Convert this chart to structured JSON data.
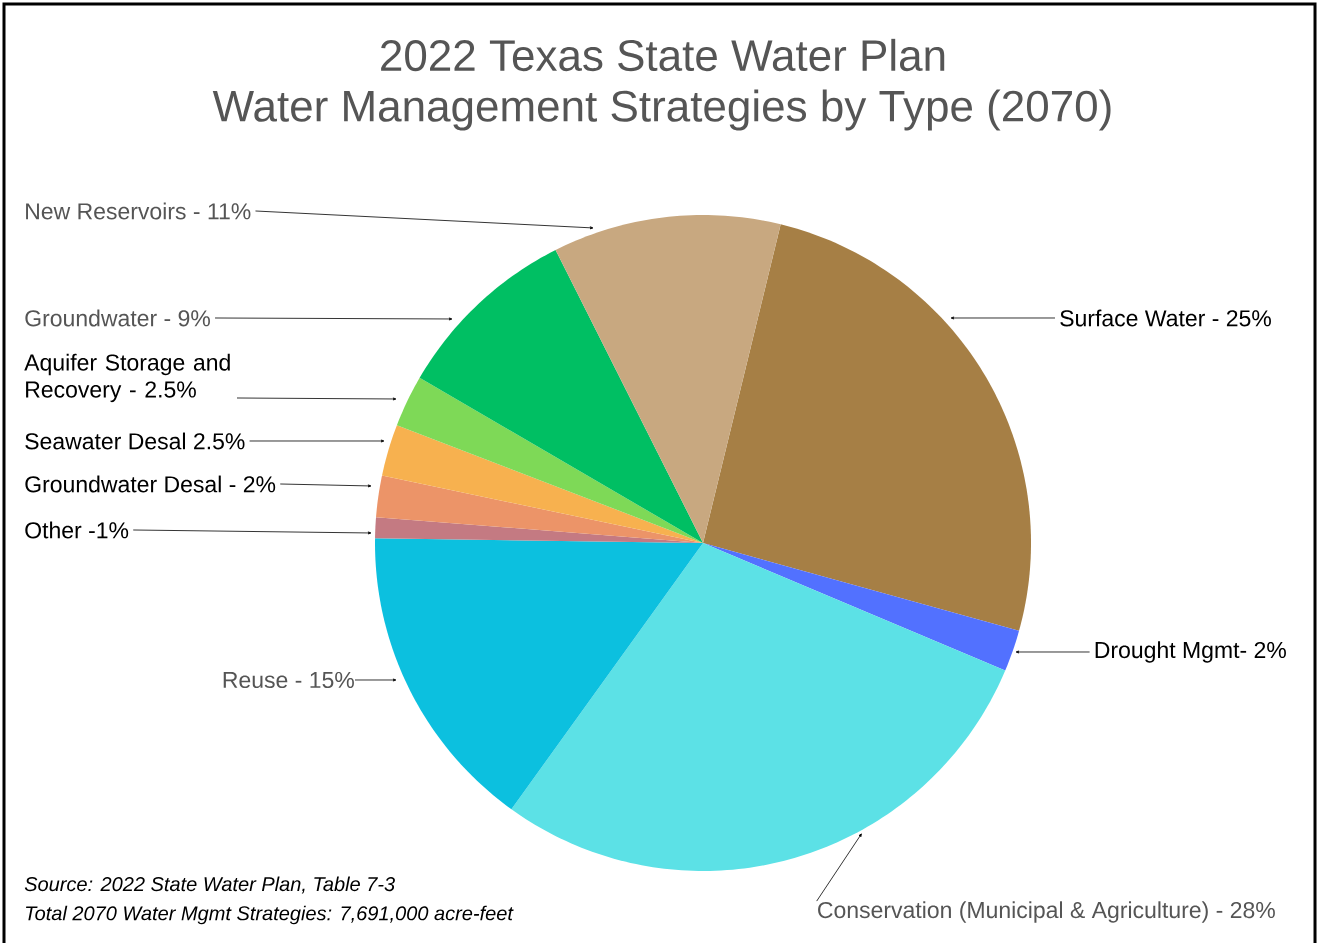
{
  "chart_data": {
    "type": "pie",
    "title": "2022 Texas State Water Plan",
    "subtitle": "Water Management Strategies by Type (2070)",
    "categories": [
      "Surface Water - 25%",
      "Drought Mgmt- 2%",
      "Conservation (Municipal & Agriculture) - 28%",
      "Reuse - 15%",
      "Other -1%",
      "Groundwater Desal - 2%",
      "Seawater Desal 2.5%",
      "Aquifer Storage and Recovery - 2.5%",
      "Groundwater - 9%",
      "New Reservoirs - 11%"
    ],
    "values": [
      25,
      2,
      28,
      15,
      1,
      2,
      2.5,
      2.5,
      9,
      11
    ],
    "colors": [
      "#a67f45",
      "#5271ff",
      "#5ce1e6",
      "#0cc0df",
      "#c47a82",
      "#ec9468",
      "#f7b14f",
      "#7ed957",
      "#00bf63",
      "#c8a880"
    ],
    "annotations": [
      "*Source: 2022 State Water Plan, Table 7-3*",
      "*Total 2070 Water Mgmt Strategies: 7,691,000 acre-feet*"
    ]
  }
}
